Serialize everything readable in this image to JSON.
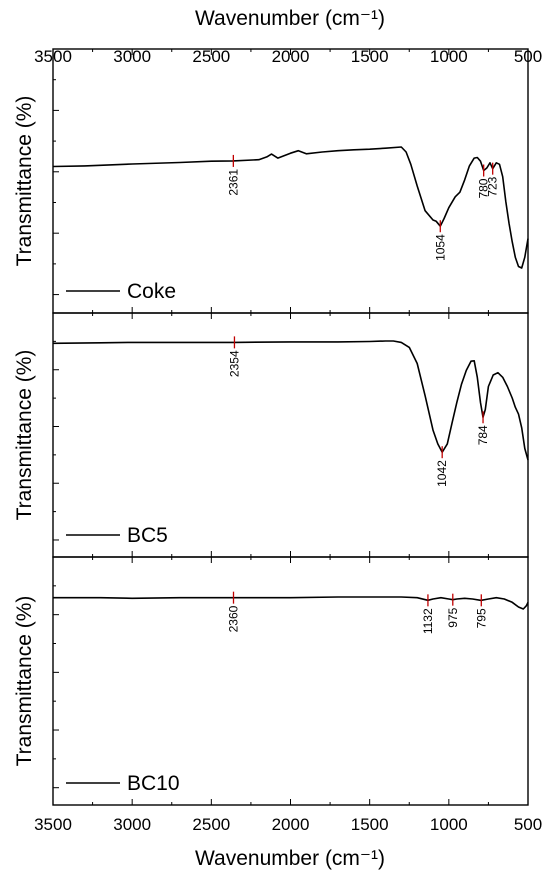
{
  "chart_data": [
    {
      "type": "line",
      "xlabel": "Wavenumber (cm⁻¹)",
      "ylabel": "Transmittance (%)",
      "xlim": [
        3500,
        500
      ],
      "x_reversed": true,
      "xticks": [
        3500,
        3000,
        2500,
        2000,
        1500,
        1000,
        500
      ],
      "y_tick_labels": false,
      "grid": false,
      "legend_position": "bottom-left",
      "series": [
        {
          "name": "Coke",
          "x": [
            3500,
            3300,
            3000,
            2700,
            2500,
            2361,
            2200,
            2150,
            2120,
            2080,
            2000,
            1950,
            1900,
            1800,
            1700,
            1600,
            1500,
            1400,
            1300,
            1270,
            1240,
            1200,
            1150,
            1100,
            1080,
            1054,
            1030,
            1000,
            960,
            930,
            900,
            870,
            840,
            820,
            800,
            780,
            760,
            740,
            723,
            700,
            680,
            660,
            640,
            620,
            600,
            580,
            560,
            540,
            520,
            500
          ],
          "y": [
            56.3,
            56.5,
            57.1,
            57.6,
            58.0,
            58.1,
            58.5,
            59.4,
            60.3,
            59.0,
            60.6,
            61.4,
            60.4,
            61.0,
            61.4,
            61.7,
            61.9,
            62.2,
            62.6,
            61.0,
            57.0,
            50.0,
            42.0,
            39.0,
            38.6,
            37.0,
            39.5,
            43.0,
            46.5,
            48.0,
            52.0,
            56.5,
            59.0,
            59.2,
            58.0,
            55.0,
            55.8,
            57.5,
            55.6,
            57.5,
            57.0,
            53.0,
            45.0,
            38.0,
            32.0,
            27.0,
            24.0,
            23.5,
            27.0,
            33.0
          ],
          "color": "#000000"
        },
        {
          "name": "BC5",
          "x": [
            3500,
            3200,
            3000,
            2700,
            2354,
            2000,
            1700,
            1500,
            1400,
            1350,
            1300,
            1250,
            1200,
            1150,
            1100,
            1070,
            1042,
            1010,
            980,
            950,
            920,
            890,
            860,
            840,
            820,
            800,
            784,
            770,
            750,
            720,
            690,
            660,
            630,
            600,
            580,
            560,
            540,
            520,
            500
          ],
          "y": [
            73.4,
            73.5,
            73.6,
            73.6,
            73.6,
            73.7,
            73.7,
            73.8,
            73.9,
            73.9,
            73.6,
            72.5,
            69.0,
            62.0,
            54.5,
            51.5,
            49.7,
            51.5,
            56.0,
            60.5,
            64.5,
            67.5,
            69.5,
            69.6,
            66.0,
            60.5,
            57.3,
            59.0,
            64.0,
            66.5,
            67.0,
            66.0,
            64.0,
            61.5,
            59.5,
            58.0,
            55.0,
            50.5,
            48.0
          ],
          "color": "#000000"
        },
        {
          "name": "BC10",
          "x": [
            3500,
            3200,
            3000,
            2700,
            2360,
            2000,
            1700,
            1500,
            1300,
            1200,
            1132,
            1100,
            1050,
            1000,
            975,
            950,
            900,
            850,
            800,
            795,
            750,
            700,
            650,
            600,
            560,
            530,
            510,
            500
          ],
          "y": [
            85.2,
            85.2,
            85.1,
            85.2,
            85.2,
            85.2,
            85.3,
            85.3,
            85.3,
            85.2,
            84.8,
            85.0,
            85.2,
            85.0,
            84.9,
            85.0,
            85.1,
            85.0,
            84.8,
            84.8,
            85.0,
            85.2,
            85.0,
            84.5,
            83.8,
            83.5,
            84.0,
            84.5
          ],
          "color": "#000000"
        }
      ],
      "annotations": [
        {
          "label": "2361",
          "x": 2361,
          "series": "Coke"
        },
        {
          "label": "1054",
          "x": 1054,
          "series": "Coke"
        },
        {
          "label": "780",
          "x": 780,
          "series": "Coke"
        },
        {
          "label": "723",
          "x": 723,
          "series": "Coke"
        },
        {
          "label": "2354",
          "x": 2354,
          "series": "BC5"
        },
        {
          "label": "1042",
          "x": 1042,
          "series": "BC5"
        },
        {
          "label": "784",
          "x": 784,
          "series": "BC5"
        },
        {
          "label": "2360",
          "x": 2360,
          "series": "BC10"
        },
        {
          "label": "1132",
          "x": 1132,
          "series": "BC10"
        },
        {
          "label": "975",
          "x": 975,
          "series": "BC10"
        },
        {
          "label": "795",
          "x": 795,
          "series": "BC10"
        }
      ],
      "annotation_color": "#c00000"
    }
  ]
}
